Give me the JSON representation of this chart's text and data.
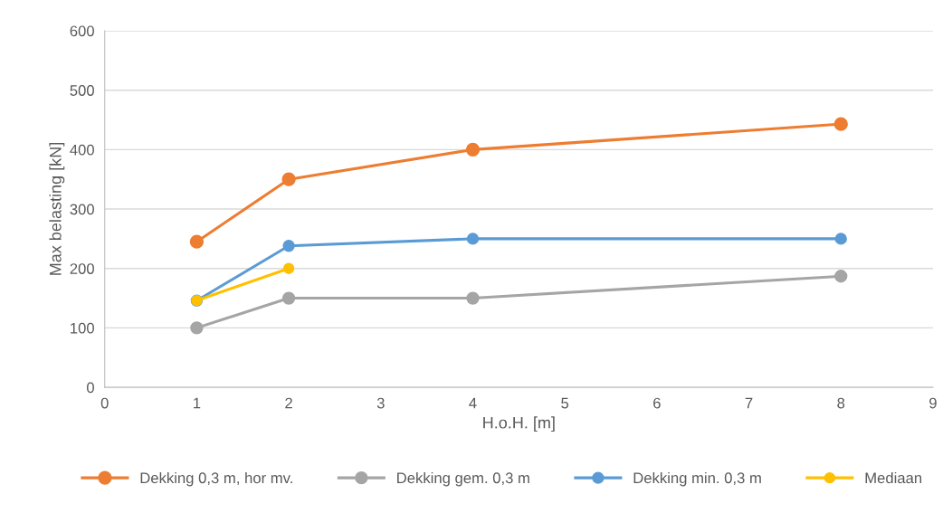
{
  "chart_data": {
    "type": "line",
    "xlabel": "H.o.H. [m]",
    "ylabel": "Max belasting [kN]",
    "x": [
      1,
      2,
      4,
      8
    ],
    "series": [
      {
        "name": "Dekking 0,3 m, hor mv.",
        "color": "#ed7d31",
        "values": [
          245,
          350,
          400,
          443
        ]
      },
      {
        "name": "Dekking gem. 0,3 m",
        "color": "#a5a5a5",
        "values": [
          100,
          150,
          150,
          187
        ]
      },
      {
        "name": "Dekking min. 0,3 m",
        "color": "#5b9bd5",
        "values": [
          146,
          238,
          250,
          250
        ]
      },
      {
        "name": "Mediaan",
        "color": "#ffc000",
        "x": [
          1,
          2
        ],
        "values": [
          146,
          200
        ]
      }
    ],
    "xlim": [
      0,
      9
    ],
    "xticks": [
      0,
      1,
      2,
      3,
      4,
      5,
      6,
      7,
      8,
      9
    ],
    "ylim": [
      0,
      600
    ],
    "yticks": [
      0,
      100,
      200,
      300,
      400,
      500,
      600
    ],
    "grid": "y",
    "legend": "bottom",
    "marker": "circle",
    "line_style": "solid"
  }
}
